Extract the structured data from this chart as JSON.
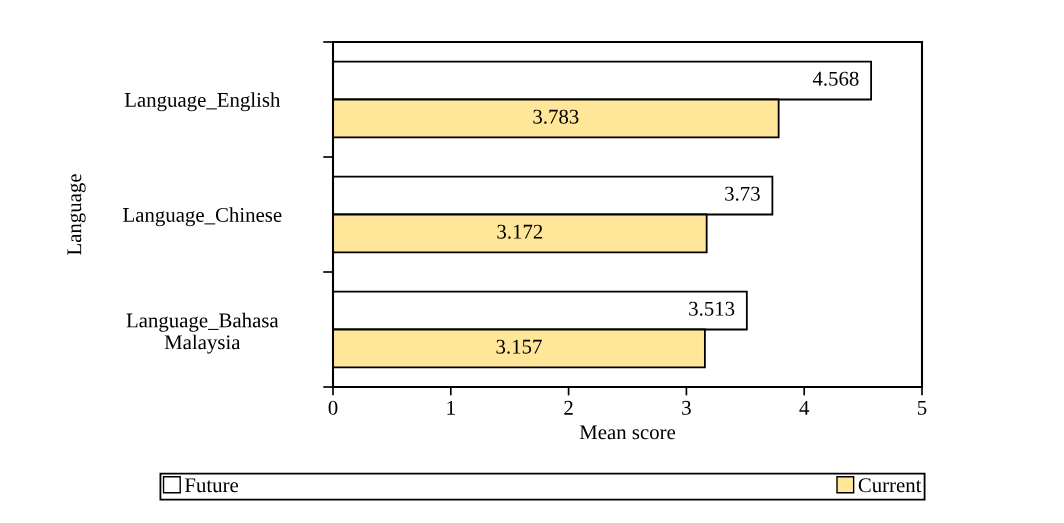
{
  "chart_data": {
    "type": "bar",
    "orientation": "horizontal",
    "ylabel": "Language",
    "xlabel": "Mean score",
    "categories": [
      "Language_English",
      "Language_Chinese",
      "Language_Bahasa\nMalaysia"
    ],
    "series": [
      {
        "name": "Future",
        "color": "#ffffff",
        "values": [
          4.568,
          3.73,
          3.513
        ]
      },
      {
        "name": "Current",
        "color": "#ffe699",
        "values": [
          3.783,
          3.172,
          3.157
        ]
      }
    ],
    "xlim": [
      0,
      5
    ],
    "xticks": [
      0,
      1,
      2,
      3,
      4,
      5
    ],
    "grid": false,
    "legend": "bottom",
    "data_labels": true
  }
}
